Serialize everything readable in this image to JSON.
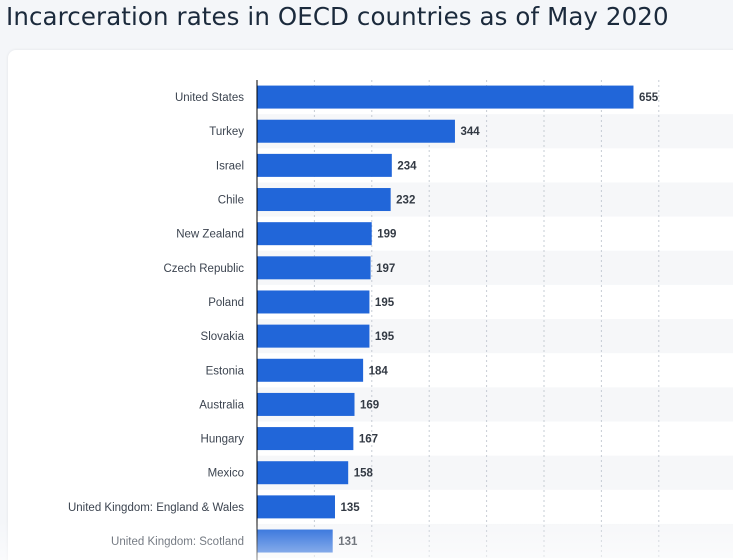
{
  "header": {
    "title": "Incarceration rates in OECD countries as of May 2020"
  },
  "colors": {
    "bar": "#2166d9",
    "label_text": "#3c4450",
    "value_text": "#333a44",
    "grid": "#c6ccd4",
    "band": "#f6f7f9",
    "axis": "#000000"
  },
  "chart_data": {
    "type": "bar",
    "orientation": "horizontal",
    "title": "Incarceration rates in OECD countries as of May 2020",
    "categories": [
      "United States",
      "Turkey",
      "Israel",
      "Chile",
      "New Zealand",
      "Czech Republic",
      "Poland",
      "Slovakia",
      "Estonia",
      "Australia",
      "Hungary",
      "Mexico",
      "United Kingdom: England & Wales",
      "United Kingdom: Scotland"
    ],
    "values": [
      655,
      344,
      234,
      232,
      199,
      197,
      195,
      195,
      184,
      169,
      167,
      158,
      135,
      131
    ],
    "xlim": [
      0,
      700
    ],
    "grid": true,
    "gridline_step": 100,
    "data_labels": true,
    "legend": "none"
  }
}
